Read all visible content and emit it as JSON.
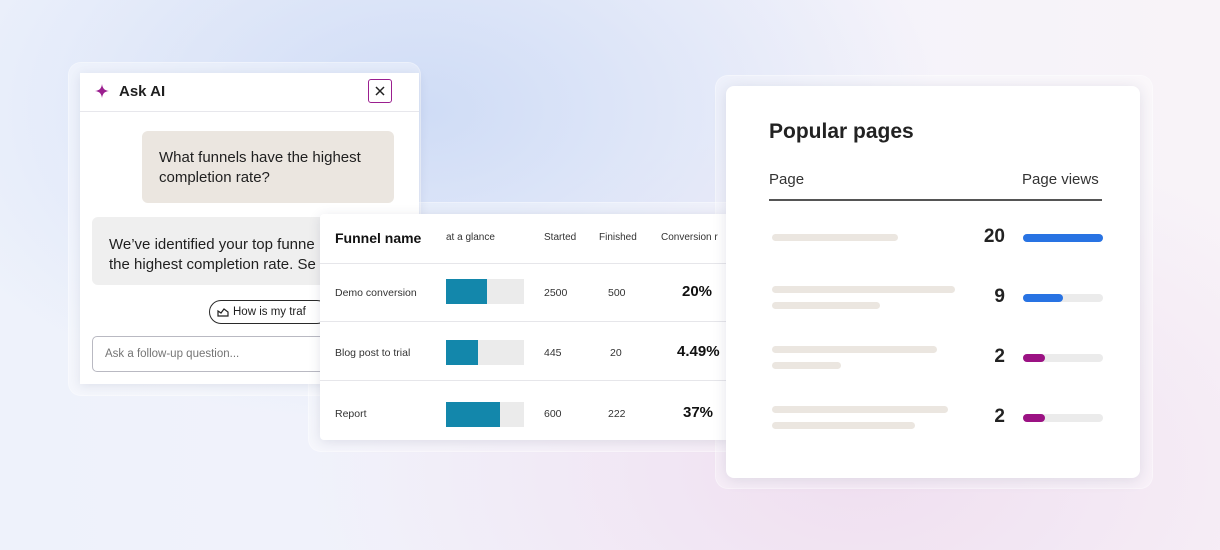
{
  "ask_ai": {
    "title": "Ask AI",
    "user_message": "What funnels have the highest completion rate?",
    "ai_message_line1": "We’ve identified your top funne",
    "ai_message_line2": "the highest completion rate. Se",
    "suggestion": "How is my traf",
    "followup_placeholder": "Ask a follow-up question...",
    "accent": "#9b1f8f"
  },
  "funnel_table": {
    "headers": {
      "name": "Funnel name",
      "glance": "at a glance",
      "started": "Started",
      "finished": "Finished",
      "rate": "Conversion r"
    },
    "rows": [
      {
        "name": "Demo conversion",
        "started": "2500",
        "finished": "500",
        "rate": "20%",
        "glance_fraction": 0.52
      },
      {
        "name": "Blog post to trial",
        "started": "445",
        "finished": "20",
        "rate": "4.49%",
        "glance_fraction": 0.41
      },
      {
        "name": "Report",
        "started": "600",
        "finished": "222",
        "rate": "37%",
        "glance_fraction": 0.69
      }
    ],
    "bar_color": "#1387ab"
  },
  "popular_pages": {
    "title": "Popular pages",
    "col_page": "Page",
    "col_views": "Page views",
    "rows": [
      {
        "views": "20",
        "fraction": 1.0,
        "color": "#2873e3"
      },
      {
        "views": "9",
        "fraction": 0.5,
        "color": "#2873e3"
      },
      {
        "views": "2",
        "fraction": 0.27,
        "color": "#9b1283"
      },
      {
        "views": "2",
        "fraction": 0.27,
        "color": "#9b1283"
      }
    ]
  }
}
